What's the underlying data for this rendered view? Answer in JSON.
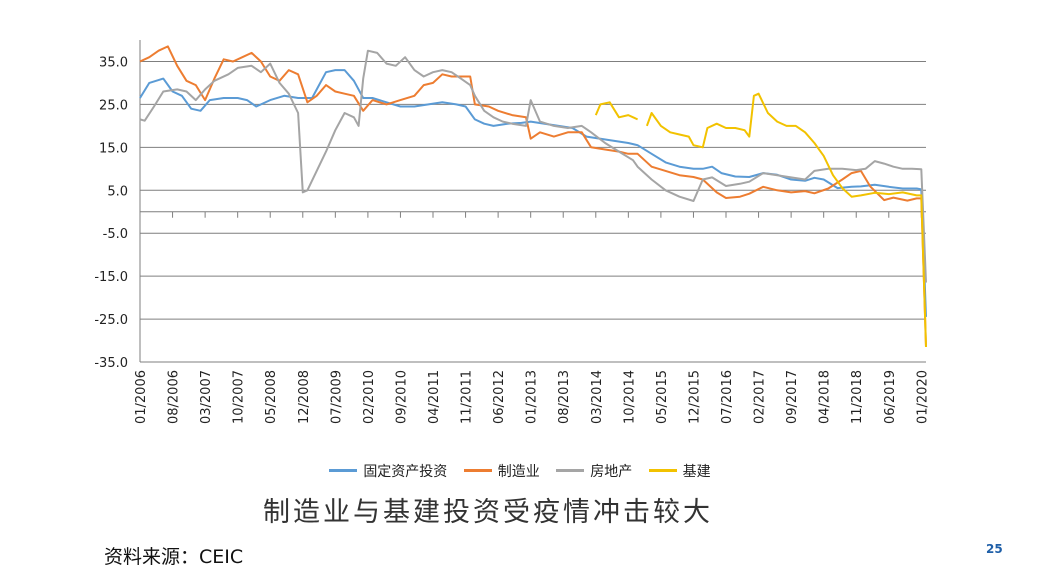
{
  "chart_data": {
    "type": "line",
    "title": "",
    "xlabel": "",
    "ylabel": "",
    "ylim": [
      -35,
      40
    ],
    "yticks": [
      35,
      25,
      15,
      5,
      -5,
      -15,
      -25,
      -35
    ],
    "ytick_labels": [
      "35.0",
      "25.0",
      "15.0",
      "5.0",
      "-5.0",
      "-15.0",
      "-25.0",
      "-35.0"
    ],
    "xlim": [
      "2006-01",
      "2020-02"
    ],
    "xtick_labels": [
      "01/2006",
      "08/2006",
      "03/2007",
      "10/2007",
      "05/2008",
      "12/2008",
      "07/2009",
      "02/2010",
      "09/2010",
      "04/2011",
      "11/2011",
      "06/2012",
      "01/2013",
      "08/2013",
      "03/2014",
      "10/2014",
      "05/2015",
      "12/2015",
      "07/2016",
      "02/2017",
      "09/2017",
      "04/2018",
      "11/2018",
      "06/2019",
      "01/2020"
    ],
    "grid": "horizontal",
    "legend_position": "bottom",
    "series": [
      {
        "name": "固定资产投资",
        "color": "#5b9bd5",
        "points": [
          [
            "2006-01",
            26.5
          ],
          [
            "2006-03",
            30
          ],
          [
            "2006-06",
            31
          ],
          [
            "2006-08",
            28
          ],
          [
            "2006-10",
            27
          ],
          [
            "2006-12",
            24
          ],
          [
            "2007-02",
            23.5
          ],
          [
            "2007-04",
            26
          ],
          [
            "2007-07",
            26.5
          ],
          [
            "2007-10",
            26.5
          ],
          [
            "2007-12",
            26
          ],
          [
            "2008-02",
            24.5
          ],
          [
            "2008-05",
            26
          ],
          [
            "2008-08",
            27
          ],
          [
            "2008-11",
            26.5
          ],
          [
            "2009-02",
            26.5
          ],
          [
            "2009-05",
            32.5
          ],
          [
            "2009-07",
            33
          ],
          [
            "2009-09",
            33
          ],
          [
            "2009-11",
            30.5
          ],
          [
            "2010-01",
            26.5
          ],
          [
            "2010-03",
            26.5
          ],
          [
            "2010-06",
            25.5
          ],
          [
            "2010-09",
            24.5
          ],
          [
            "2010-12",
            24.5
          ],
          [
            "2011-03",
            25
          ],
          [
            "2011-06",
            25.5
          ],
          [
            "2011-09",
            25
          ],
          [
            "2011-11",
            24.5
          ],
          [
            "2012-01",
            21.5
          ],
          [
            "2012-03",
            20.5
          ],
          [
            "2012-05",
            20
          ],
          [
            "2012-08",
            20.5
          ],
          [
            "2012-11",
            20.7
          ],
          [
            "2013-01",
            21
          ],
          [
            "2013-04",
            20.5
          ],
          [
            "2013-07",
            20
          ],
          [
            "2013-10",
            19.5
          ],
          [
            "2014-01",
            17.5
          ],
          [
            "2014-04",
            17
          ],
          [
            "2014-07",
            16.5
          ],
          [
            "2014-10",
            16
          ],
          [
            "2014-12",
            15.5
          ],
          [
            "2015-03",
            13.5
          ],
          [
            "2015-06",
            11.5
          ],
          [
            "2015-09",
            10.5
          ],
          [
            "2015-12",
            10
          ],
          [
            "2016-02",
            10
          ],
          [
            "2016-04",
            10.5
          ],
          [
            "2016-06",
            9
          ],
          [
            "2016-09",
            8.2
          ],
          [
            "2016-12",
            8.1
          ],
          [
            "2017-03",
            9
          ],
          [
            "2017-06",
            8.6
          ],
          [
            "2017-09",
            7.5
          ],
          [
            "2017-12",
            7.2
          ],
          [
            "2018-02",
            7.9
          ],
          [
            "2018-04",
            7.5
          ],
          [
            "2018-07",
            5.5
          ],
          [
            "2018-10",
            5.8
          ],
          [
            "2018-12",
            5.9
          ],
          [
            "2019-03",
            6.3
          ],
          [
            "2019-06",
            5.8
          ],
          [
            "2019-09",
            5.4
          ],
          [
            "2019-12",
            5.4
          ],
          [
            "2020-01",
            5.2
          ],
          [
            "2020-02",
            -24.5
          ]
        ]
      },
      {
        "name": "制造业",
        "color": "#ed7d31",
        "points": [
          [
            "2006-01",
            35
          ],
          [
            "2006-03",
            36
          ],
          [
            "2006-05",
            37.5
          ],
          [
            "2006-07",
            38.5
          ],
          [
            "2006-09",
            34
          ],
          [
            "2006-11",
            30.5
          ],
          [
            "2007-01",
            29.5
          ],
          [
            "2007-03",
            26
          ],
          [
            "2007-05",
            31
          ],
          [
            "2007-07",
            35.5
          ],
          [
            "2007-09",
            35
          ],
          [
            "2007-11",
            36
          ],
          [
            "2008-01",
            37
          ],
          [
            "2008-03",
            35
          ],
          [
            "2008-05",
            31.5
          ],
          [
            "2008-07",
            30.5
          ],
          [
            "2008-09",
            33
          ],
          [
            "2008-11",
            32
          ],
          [
            "2009-01",
            25.5
          ],
          [
            "2009-03",
            27
          ],
          [
            "2009-05",
            29.5
          ],
          [
            "2009-07",
            28
          ],
          [
            "2009-09",
            27.5
          ],
          [
            "2009-11",
            27
          ],
          [
            "2010-01",
            23.5
          ],
          [
            "2010-03",
            26
          ],
          [
            "2010-06",
            25
          ],
          [
            "2010-09",
            26
          ],
          [
            "2010-12",
            27
          ],
          [
            "2011-02",
            29.5
          ],
          [
            "2011-04",
            30
          ],
          [
            "2011-06",
            32
          ],
          [
            "2011-08",
            31.5
          ],
          [
            "2011-10",
            31.5
          ],
          [
            "2011-12",
            31.5
          ],
          [
            "2012-01",
            25
          ],
          [
            "2012-04",
            24.5
          ],
          [
            "2012-06",
            23.5
          ],
          [
            "2012-09",
            22.5
          ],
          [
            "2012-12",
            22
          ],
          [
            "2013-01",
            17
          ],
          [
            "2013-03",
            18.5
          ],
          [
            "2013-06",
            17.5
          ],
          [
            "2013-09",
            18.5
          ],
          [
            "2013-12",
            18.5
          ],
          [
            "2014-02",
            15
          ],
          [
            "2014-05",
            14.5
          ],
          [
            "2014-08",
            14
          ],
          [
            "2014-10",
            13.5
          ],
          [
            "2014-12",
            13.5
          ],
          [
            "2015-03",
            10.5
          ],
          [
            "2015-06",
            9.5
          ],
          [
            "2015-09",
            8.5
          ],
          [
            "2015-12",
            8.1
          ],
          [
            "2016-02",
            7.5
          ],
          [
            "2016-05",
            4.5
          ],
          [
            "2016-07",
            3.2
          ],
          [
            "2016-10",
            3.5
          ],
          [
            "2016-12",
            4.2
          ],
          [
            "2017-03",
            5.8
          ],
          [
            "2017-06",
            5
          ],
          [
            "2017-09",
            4.5
          ],
          [
            "2017-12",
            4.8
          ],
          [
            "2018-02",
            4.3
          ],
          [
            "2018-05",
            5.4
          ],
          [
            "2018-08",
            7.5
          ],
          [
            "2018-10",
            9
          ],
          [
            "2018-12",
            9.5
          ],
          [
            "2019-02",
            5.9
          ],
          [
            "2019-05",
            2.7
          ],
          [
            "2019-07",
            3.3
          ],
          [
            "2019-10",
            2.6
          ],
          [
            "2019-12",
            3.1
          ],
          [
            "2020-01",
            3.1
          ],
          [
            "2020-02",
            -31.5
          ]
        ]
      },
      {
        "name": "房地产",
        "color": "#a5a5a5",
        "points": [
          [
            "2006-01",
            21.5
          ],
          [
            "2006-02",
            21.2
          ],
          [
            "2006-04",
            24.5
          ],
          [
            "2006-06",
            28
          ],
          [
            "2006-09",
            28.5
          ],
          [
            "2006-11",
            28
          ],
          [
            "2007-01",
            26
          ],
          [
            "2007-03",
            28.5
          ],
          [
            "2007-05",
            30.5
          ],
          [
            "2007-08",
            32
          ],
          [
            "2007-10",
            33.5
          ],
          [
            "2008-01",
            34
          ],
          [
            "2008-03",
            32.5
          ],
          [
            "2008-05",
            34.5
          ],
          [
            "2008-07",
            30
          ],
          [
            "2008-09",
            27.5
          ],
          [
            "2008-11",
            23
          ],
          [
            "2008-12",
            4.5
          ],
          [
            "2009-01",
            5
          ],
          [
            "2009-03",
            9.5
          ],
          [
            "2009-05",
            14
          ],
          [
            "2009-07",
            19
          ],
          [
            "2009-09",
            23
          ],
          [
            "2009-11",
            22
          ],
          [
            "2009-12",
            20
          ],
          [
            "2010-01",
            31
          ],
          [
            "2010-02",
            37.5
          ],
          [
            "2010-04",
            37
          ],
          [
            "2010-06",
            34.5
          ],
          [
            "2010-08",
            34
          ],
          [
            "2010-10",
            36
          ],
          [
            "2010-12",
            33
          ],
          [
            "2011-02",
            31.5
          ],
          [
            "2011-04",
            32.5
          ],
          [
            "2011-06",
            33
          ],
          [
            "2011-08",
            32.5
          ],
          [
            "2011-10",
            31
          ],
          [
            "2011-12",
            29.5
          ],
          [
            "2012-01",
            27
          ],
          [
            "2012-03",
            23.5
          ],
          [
            "2012-05",
            22
          ],
          [
            "2012-07",
            21
          ],
          [
            "2012-09",
            20.5
          ],
          [
            "2012-12",
            20
          ],
          [
            "2013-01",
            26
          ],
          [
            "2013-03",
            21
          ],
          [
            "2013-06",
            20
          ],
          [
            "2013-09",
            19.5
          ],
          [
            "2013-12",
            20
          ],
          [
            "2014-02",
            18.5
          ],
          [
            "2014-05",
            16
          ],
          [
            "2014-08",
            14
          ],
          [
            "2014-11",
            12
          ],
          [
            "2014-12",
            10.5
          ],
          [
            "2015-03",
            7.5
          ],
          [
            "2015-06",
            5
          ],
          [
            "2015-09",
            3.5
          ],
          [
            "2015-12",
            2.5
          ],
          [
            "2016-02",
            7.5
          ],
          [
            "2016-04",
            8
          ],
          [
            "2016-07",
            6
          ],
          [
            "2016-10",
            6.5
          ],
          [
            "2016-12",
            7
          ],
          [
            "2017-03",
            9
          ],
          [
            "2017-06",
            8.5
          ],
          [
            "2017-09",
            8
          ],
          [
            "2017-12",
            7.5
          ],
          [
            "2018-02",
            9.5
          ],
          [
            "2018-05",
            10
          ],
          [
            "2018-08",
            10
          ],
          [
            "2018-11",
            9.7
          ],
          [
            "2019-01",
            10
          ],
          [
            "2019-03",
            11.8
          ],
          [
            "2019-05",
            11.2
          ],
          [
            "2019-07",
            10.5
          ],
          [
            "2019-09",
            10
          ],
          [
            "2019-11",
            10
          ],
          [
            "2020-01",
            9.9
          ],
          [
            "2020-02",
            -16.5
          ]
        ]
      },
      {
        "name": "基建",
        "color": "#f2c200",
        "points": [
          [
            "2014-03",
            22.5
          ],
          [
            "2014-04",
            25
          ],
          [
            "2014-06",
            25.5
          ],
          [
            "2014-08",
            22
          ],
          [
            "2014-10",
            22.5
          ],
          [
            "2014-12",
            21.5
          ],
          null,
          [
            "2015-02",
            20
          ],
          [
            "2015-03",
            23
          ],
          [
            "2015-05",
            20
          ],
          [
            "2015-07",
            18.5
          ],
          [
            "2015-09",
            18
          ],
          [
            "2015-11",
            17.5
          ],
          [
            "2015-12",
            15.5
          ],
          [
            "2016-02",
            15
          ],
          [
            "2016-03",
            19.5
          ],
          [
            "2016-05",
            20.5
          ],
          [
            "2016-07",
            19.5
          ],
          [
            "2016-09",
            19.5
          ],
          [
            "2016-11",
            19
          ],
          [
            "2016-12",
            17.5
          ],
          [
            "2017-01",
            27
          ],
          [
            "2017-02",
            27.5
          ],
          [
            "2017-04",
            23
          ],
          [
            "2017-06",
            21
          ],
          [
            "2017-08",
            20
          ],
          [
            "2017-10",
            20
          ],
          [
            "2017-12",
            18.5
          ],
          [
            "2018-02",
            16
          ],
          [
            "2018-04",
            13
          ],
          [
            "2018-06",
            8.5
          ],
          [
            "2018-08",
            5.5
          ],
          [
            "2018-10",
            3.5
          ],
          [
            "2018-12",
            3.8
          ],
          [
            "2019-03",
            4.4
          ],
          [
            "2019-06",
            4.1
          ],
          [
            "2019-09",
            4.5
          ],
          [
            "2019-12",
            3.8
          ],
          [
            "2020-01",
            3.8
          ],
          [
            "2020-02",
            -31.5
          ]
        ]
      }
    ]
  },
  "caption": "制造业与基建投资受疫情冲击较大",
  "source": "资料来源：CEIC",
  "page_number": "25"
}
